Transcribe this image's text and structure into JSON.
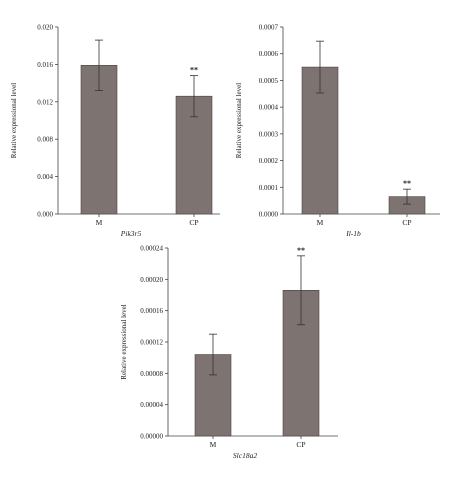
{
  "chart_data": [
    {
      "type": "bar",
      "xlabel": "Pik3r5",
      "ylabel": "Relative expressional level",
      "categories": [
        "M",
        "CP"
      ],
      "values": [
        0.0159,
        0.0126
      ],
      "errors": [
        0.0027,
        0.0022
      ],
      "significance": [
        "",
        "**"
      ],
      "ylim": [
        0,
        0.02
      ],
      "yticks": [
        "0.000",
        "0.004",
        "0.008",
        "0.012",
        "0.016",
        "0.020"
      ],
      "grid": false
    },
    {
      "type": "bar",
      "xlabel": "Il-1b",
      "ylabel": "Relative expressional level",
      "categories": [
        "M",
        "CP"
      ],
      "values": [
        0.00055,
        6.5e-05
      ],
      "errors": [
        9.7e-05,
        2.8e-05
      ],
      "significance": [
        "",
        "**"
      ],
      "ylim": [
        0,
        0.0007
      ],
      "yticks": [
        "0.0000",
        "0.0001",
        "0.0002",
        "0.0003",
        "0.0004",
        "0.0005",
        "0.0006",
        "0.0007"
      ],
      "grid": false
    },
    {
      "type": "bar",
      "xlabel": "Slc18a2",
      "ylabel": "Relative expressional level",
      "categories": [
        "M",
        "CP"
      ],
      "values": [
        0.000104,
        0.000186
      ],
      "errors": [
        2.6e-05,
        4.4e-05
      ],
      "significance": [
        "",
        "**"
      ],
      "ylim": [
        0,
        0.00024
      ],
      "yticks": [
        "0.00000",
        "0.00004",
        "0.00008",
        "0.00012",
        "0.00016",
        "0.00020",
        "0.00024"
      ],
      "grid": false
    }
  ]
}
